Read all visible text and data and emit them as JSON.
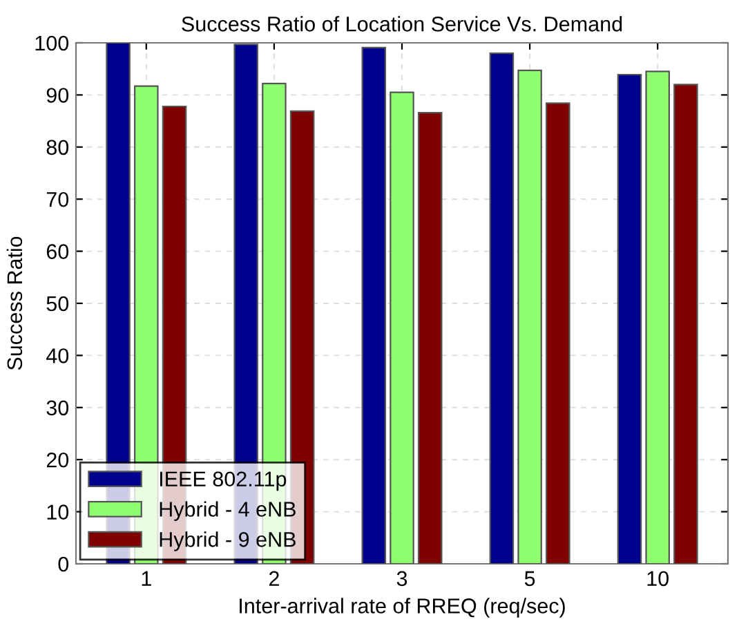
{
  "chart_data": {
    "type": "bar",
    "title": "Success Ratio of Location Service Vs. Demand",
    "xlabel": "Inter-arrival rate of RREQ (req/sec)",
    "ylabel": "Success Ratio",
    "categories": [
      "1",
      "2",
      "3",
      "5",
      "10"
    ],
    "series": [
      {
        "name": "IEEE 802.11p",
        "color": "#00008f",
        "values": [
          100,
          99.7,
          99.1,
          98.0,
          93.9
        ]
      },
      {
        "name": "Hybrid - 4 eNB",
        "color": "#8fff6f",
        "values": [
          91.7,
          92.2,
          90.5,
          94.7,
          94.5
        ]
      },
      {
        "name": "Hybrid - 9 eNB",
        "color": "#800000",
        "values": [
          87.8,
          86.9,
          86.6,
          88.4,
          92.0
        ]
      }
    ],
    "ylim": [
      0,
      100
    ],
    "yticks": [
      0,
      10,
      20,
      30,
      40,
      50,
      60,
      70,
      80,
      90,
      100
    ],
    "grid": true,
    "legend": "bottom left"
  }
}
